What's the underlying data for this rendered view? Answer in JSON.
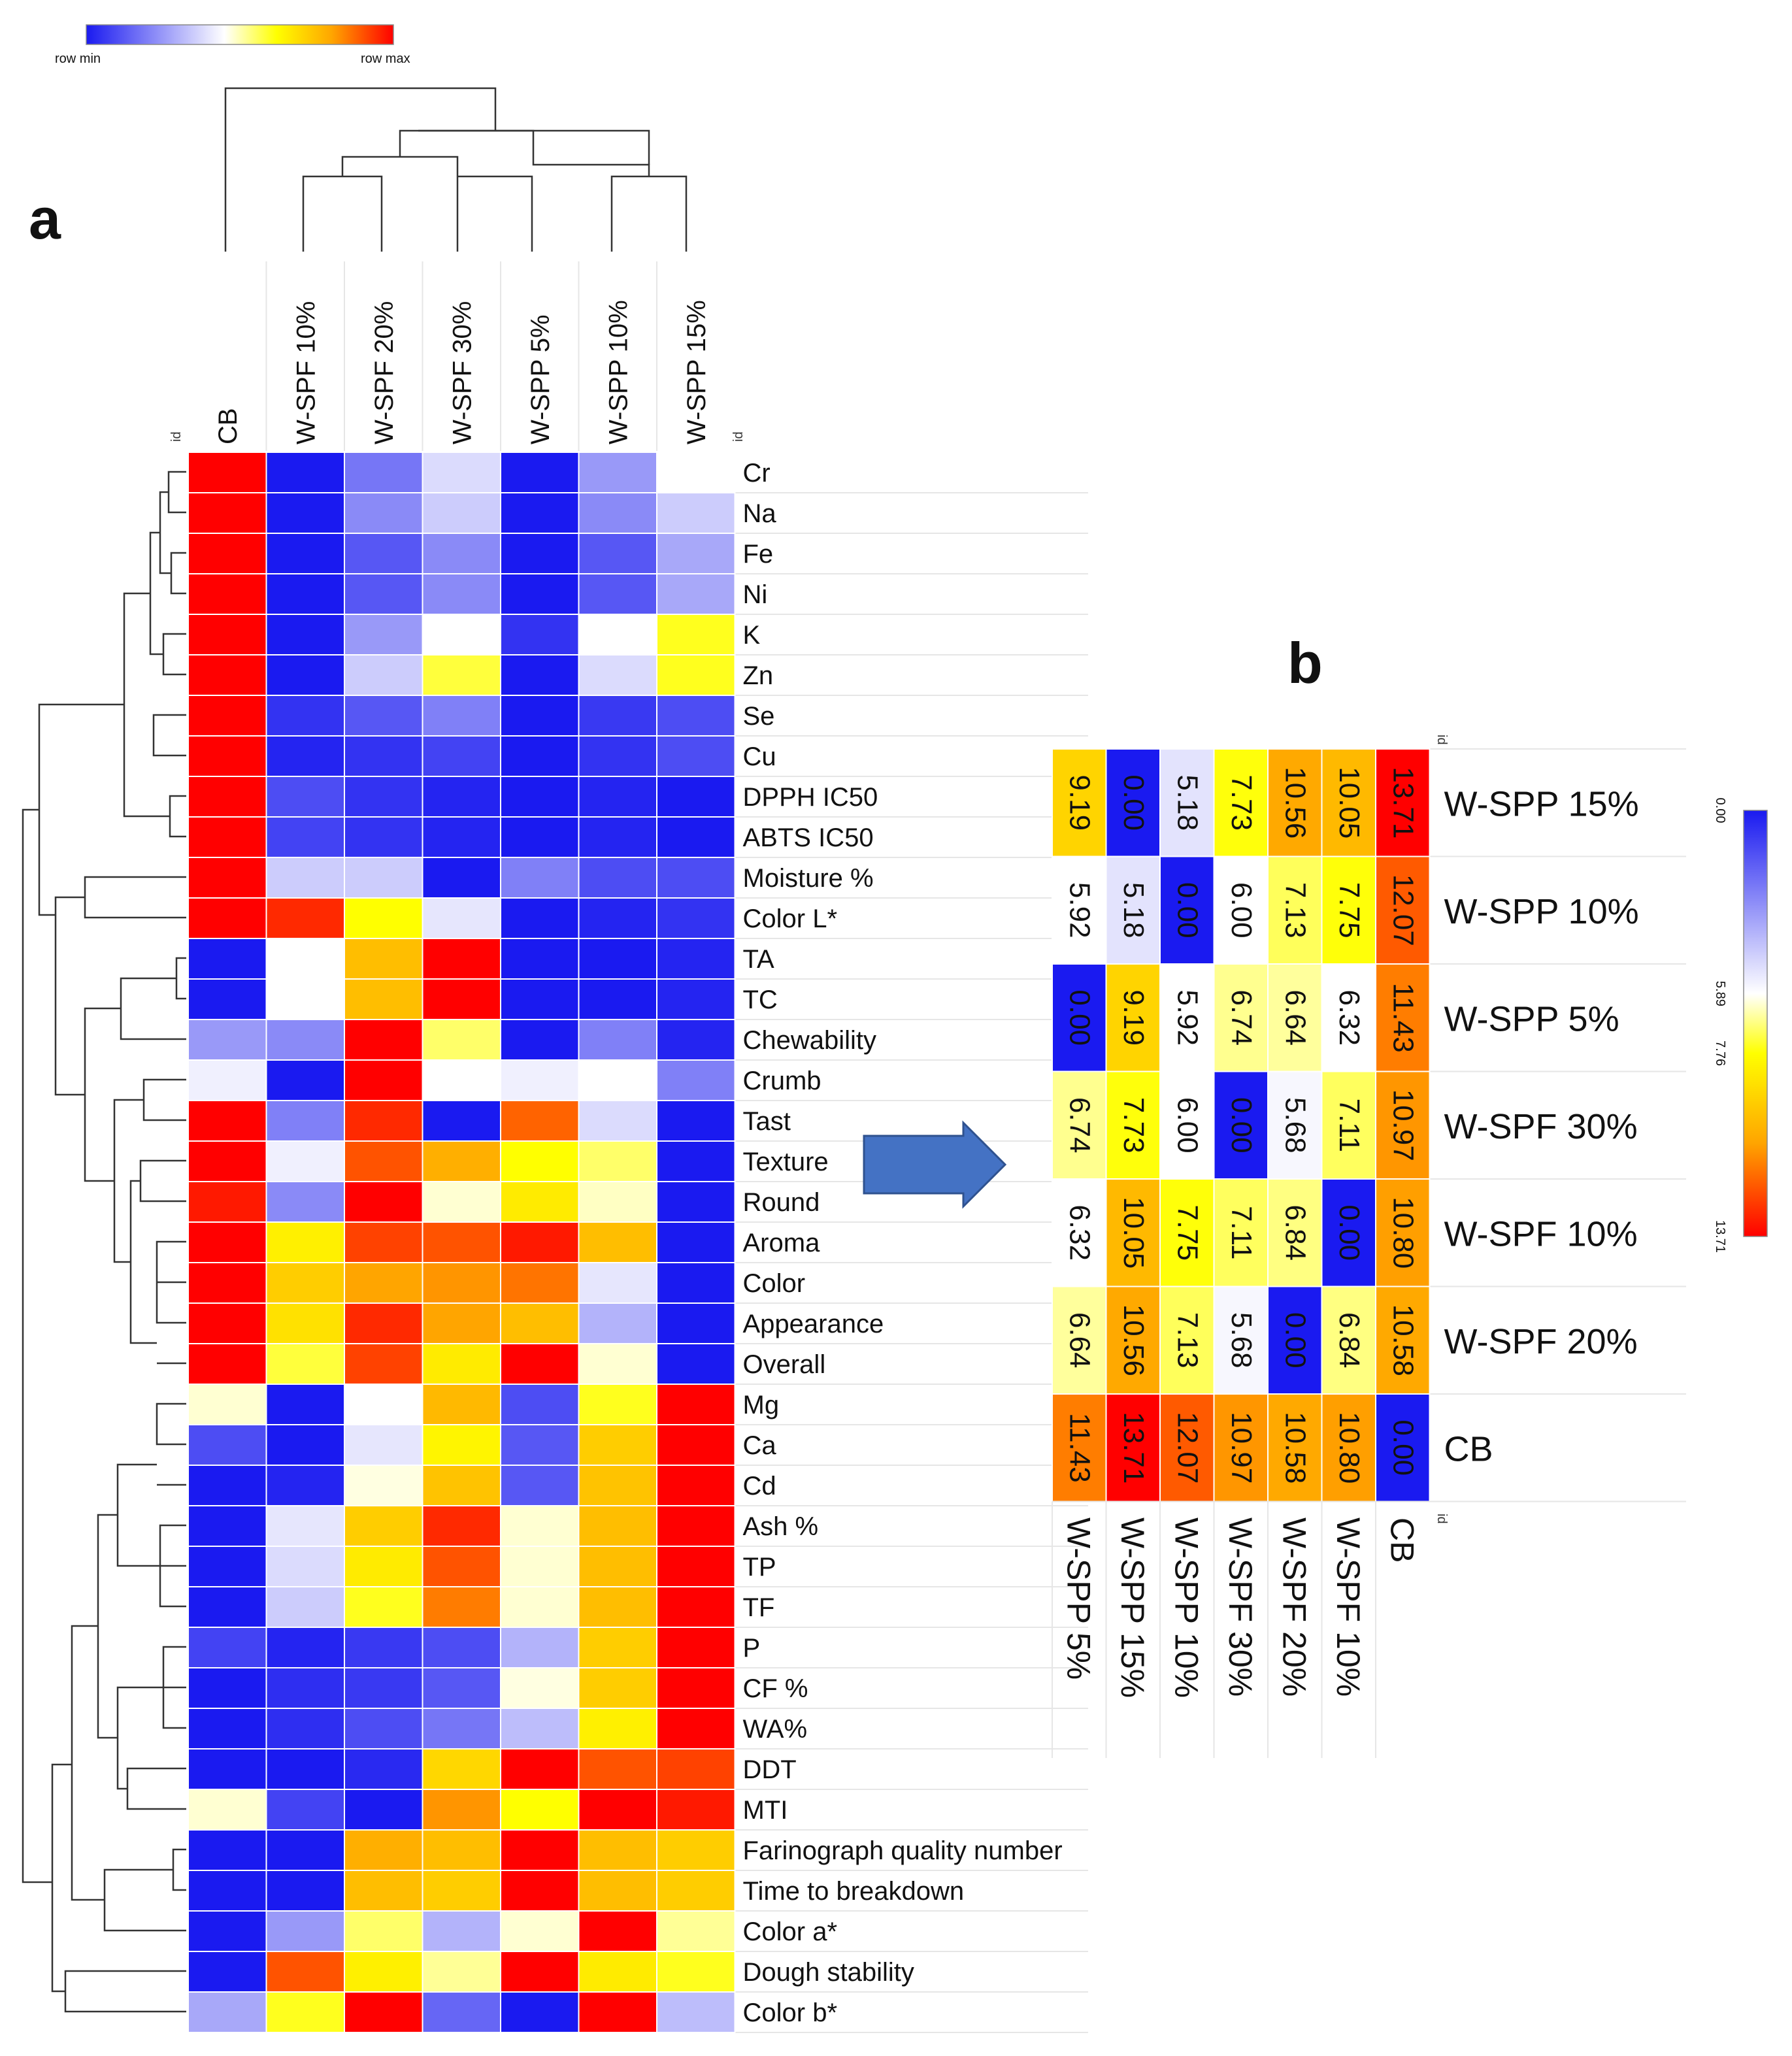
{
  "panel_labels": {
    "a": "a",
    "b": "b"
  },
  "colorbar_a": {
    "min_label": "row  min",
    "max_label": "row  max",
    "colors": [
      "#1a1af0",
      "#ffffff",
      "#ffff00",
      "#ffa500",
      "#ff0000"
    ]
  },
  "colorbar_b": {
    "tick_labels": [
      "0.00",
      "5.89",
      "7.76",
      "13.71"
    ],
    "tick_values": [
      0.0,
      5.89,
      7.76,
      13.71
    ]
  },
  "id_label": "id",
  "chart_data": [
    {
      "type": "heatmap",
      "title": "a",
      "normalization": "row",
      "columns": [
        "CB",
        "W-SPF 10%",
        "W-SPF 20%",
        "W-SPF 30%",
        "W-SPP 5%",
        "W-SPP 10%",
        "W-SPP 15%"
      ],
      "rows": [
        "Cr",
        "Na",
        "Fe",
        "Ni",
        "K",
        "Zn",
        "Se",
        "Cu",
        "DPPH IC50",
        "ABTS IC50",
        "Moisture %",
        "Color L*",
        "TA",
        "TC",
        "Chewability",
        "Crumb",
        "Tast",
        "Texture",
        "Round",
        "Aroma",
        "Color",
        "Appearance",
        "Overall",
        "Mg",
        "Ca",
        "Cd",
        "Ash %",
        "TP",
        "TF",
        "P",
        "CF %",
        "WA%",
        "DDT",
        "MTI",
        "Farinograph quality number",
        "Time to breakdown",
        "Color a*",
        "Dough stability",
        "Color b*"
      ],
      "values": [
        [
          1.0,
          0.0,
          0.18,
          0.38,
          0.0,
          0.25,
          0.45
        ],
        [
          1.0,
          0.0,
          0.22,
          0.35,
          0.0,
          0.22,
          0.35
        ],
        [
          1.0,
          0.0,
          0.12,
          0.22,
          0.0,
          0.12,
          0.28
        ],
        [
          1.0,
          0.0,
          0.12,
          0.22,
          0.0,
          0.12,
          0.28
        ],
        [
          1.0,
          0.0,
          0.25,
          0.45,
          0.05,
          0.45,
          0.6
        ],
        [
          1.0,
          0.0,
          0.35,
          0.58,
          0.0,
          0.38,
          0.6
        ],
        [
          1.0,
          0.05,
          0.12,
          0.2,
          0.0,
          0.06,
          0.1
        ],
        [
          1.0,
          0.02,
          0.05,
          0.08,
          0.0,
          0.05,
          0.1
        ],
        [
          1.0,
          0.1,
          0.05,
          0.02,
          0.0,
          0.02,
          0.0
        ],
        [
          1.0,
          0.08,
          0.05,
          0.02,
          0.0,
          0.02,
          0.0
        ],
        [
          1.0,
          0.35,
          0.35,
          0.0,
          0.2,
          0.1,
          0.1
        ],
        [
          1.0,
          0.95,
          0.62,
          0.4,
          0.0,
          0.02,
          0.05
        ],
        [
          0.0,
          0.45,
          0.75,
          1.0,
          0.0,
          0.0,
          0.02
        ],
        [
          0.0,
          0.45,
          0.75,
          1.0,
          0.0,
          0.0,
          0.02
        ],
        [
          0.25,
          0.22,
          1.0,
          0.55,
          0.0,
          0.2,
          0.02
        ],
        [
          0.42,
          0.0,
          1.0,
          0.45,
          0.42,
          0.45,
          0.2
        ],
        [
          1.0,
          0.2,
          0.95,
          0.0,
          0.88,
          0.38,
          0.0
        ],
        [
          1.0,
          0.42,
          0.9,
          0.78,
          0.62,
          0.55,
          0.0
        ],
        [
          0.97,
          0.22,
          1.0,
          0.48,
          0.66,
          0.49,
          0.0
        ],
        [
          1.0,
          0.65,
          0.92,
          0.9,
          0.97,
          0.75,
          0.0
        ],
        [
          1.0,
          0.72,
          0.8,
          0.82,
          0.86,
          0.4,
          0.0
        ],
        [
          1.0,
          0.68,
          0.95,
          0.8,
          0.75,
          0.3,
          0.0
        ],
        [
          1.0,
          0.58,
          0.92,
          0.66,
          1.0,
          0.48,
          0.0
        ],
        [
          0.48,
          0.0,
          0.45,
          0.76,
          0.1,
          0.6,
          1.0
        ],
        [
          0.1,
          0.0,
          0.4,
          0.64,
          0.12,
          0.72,
          1.0
        ],
        [
          0.0,
          0.02,
          0.47,
          0.74,
          0.12,
          0.74,
          1.0
        ],
        [
          0.0,
          0.4,
          0.72,
          0.95,
          0.48,
          0.75,
          1.0
        ],
        [
          0.0,
          0.38,
          0.66,
          0.9,
          0.48,
          0.75,
          1.0
        ],
        [
          0.0,
          0.35,
          0.6,
          0.85,
          0.48,
          0.75,
          1.0
        ],
        [
          0.08,
          0.02,
          0.06,
          0.1,
          0.3,
          0.72,
          1.0
        ],
        [
          0.0,
          0.04,
          0.06,
          0.12,
          0.47,
          0.72,
          1.0
        ],
        [
          0.0,
          0.04,
          0.1,
          0.18,
          0.32,
          0.65,
          1.0
        ],
        [
          0.0,
          0.0,
          0.03,
          0.7,
          1.0,
          0.9,
          0.92
        ],
        [
          0.48,
          0.08,
          0.0,
          0.82,
          0.62,
          1.0,
          0.97
        ],
        [
          0.0,
          0.0,
          0.78,
          0.75,
          1.0,
          0.75,
          0.72
        ],
        [
          0.0,
          0.0,
          0.75,
          0.72,
          1.0,
          0.75,
          0.72
        ],
        [
          0.0,
          0.25,
          0.55,
          0.3,
          0.48,
          1.0,
          0.52
        ],
        [
          0.0,
          0.9,
          0.65,
          0.52,
          1.0,
          0.66,
          0.6
        ],
        [
          0.28,
          0.6,
          1.0,
          0.15,
          0.0,
          1.0,
          0.32
        ]
      ]
    },
    {
      "type": "heatmap",
      "title": "b",
      "range": [
        0.0,
        13.71
      ],
      "row_labels": [
        "W-SPP 15%",
        "W-SPP 10%",
        "W-SPP 5%",
        "W-SPF 30%",
        "W-SPF 10%",
        "W-SPF 20%",
        "CB"
      ],
      "column_labels": [
        "W-SPP 5%",
        "W-SPP 15%",
        "W-SPP 10%",
        "W-SPF 30%",
        "W-SPF 20%",
        "W-SPF 10%",
        "CB"
      ],
      "values": [
        [
          "9.19",
          "0.00",
          "5.18",
          "7.73",
          "10.56",
          "10.05",
          "13.71"
        ],
        [
          "5.92",
          "5.18",
          "0.00",
          "6.00",
          "7.13",
          "7.75",
          "12.07"
        ],
        [
          "0.00",
          "9.19",
          "5.92",
          "6.74",
          "6.64",
          "6.32",
          "11.43"
        ],
        [
          "6.74",
          "7.73",
          "6.00",
          "0.00",
          "5.68",
          "7.11",
          "10.97"
        ],
        [
          "6.32",
          "10.05",
          "7.75",
          "7.11",
          "6.84",
          "0.00",
          "10.80"
        ],
        [
          "6.64",
          "10.56",
          "7.13",
          "5.68",
          "0.00",
          "6.84",
          "10.58"
        ],
        [
          "11.43",
          "13.71",
          "12.07",
          "10.97",
          "10.58",
          "10.80",
          "0.00"
        ]
      ]
    }
  ]
}
